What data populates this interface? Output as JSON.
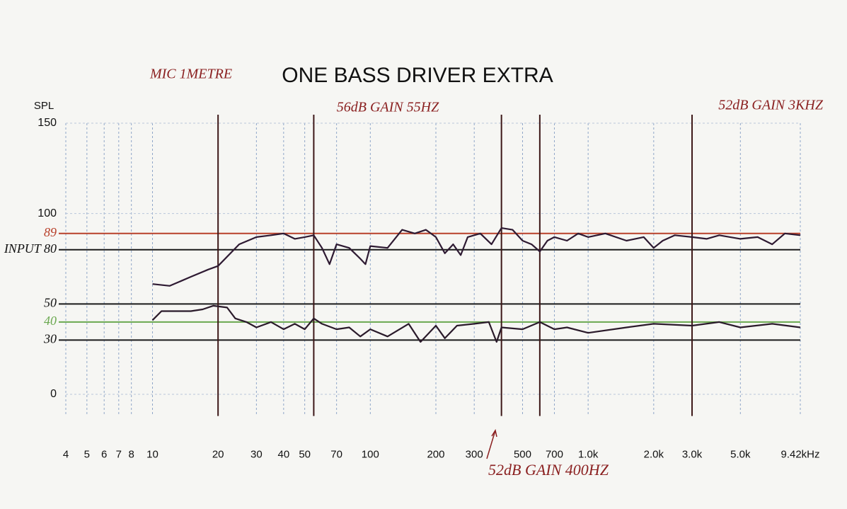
{
  "chart_data": {
    "type": "line",
    "title": "ONE BASS DRIVER EXTRA",
    "note": "MIC 1METRE",
    "ylabel": "SPL",
    "annotations": [
      "56dB GAIN 55HZ",
      "52dB GAIN 3KHZ",
      "52dB GAIN 400HZ"
    ],
    "xscale": "log",
    "xlim": [
      4,
      9420
    ],
    "ylim": [
      -12,
      150
    ],
    "xticks": [
      4,
      5,
      6,
      7,
      8,
      10,
      20,
      30,
      40,
      50,
      70,
      100,
      200,
      300,
      500,
      700,
      {
        "value": 1000,
        "label": "1.0k"
      },
      {
        "value": 2000,
        "label": "2.0k"
      },
      {
        "value": 3000,
        "label": "3.0k"
      },
      {
        "value": 5000,
        "label": "5.0k"
      },
      {
        "value": 9420,
        "label": "9.42kHz"
      }
    ],
    "yticks": [
      0,
      30,
      40,
      50,
      {
        "value": 80,
        "label": "INPUT 80"
      },
      89,
      100,
      150
    ],
    "grid": true,
    "hlines": [
      {
        "value": 89,
        "color": "#b8402a"
      },
      {
        "value": 80,
        "color": "#1a1a1a"
      },
      {
        "value": 50,
        "color": "#1a1a1a"
      },
      {
        "value": 40,
        "color": "#6aa84f"
      },
      {
        "value": 30,
        "color": "#1a1a1a"
      }
    ],
    "vlines": {
      "values": [
        20,
        55,
        400,
        600,
        3000
      ],
      "color": "#3d1818"
    },
    "series": [
      {
        "color": "#2e1a32",
        "x": [
          10,
          12,
          15,
          18,
          20,
          25,
          30,
          35,
          40,
          45,
          50,
          55,
          60,
          65,
          70,
          80,
          90,
          95,
          100,
          120,
          140,
          160,
          180,
          200,
          220,
          240,
          260,
          280,
          320,
          360,
          400,
          450,
          500,
          550,
          600,
          650,
          700,
          800,
          900,
          1000,
          1200,
          1500,
          1800,
          2000,
          2200,
          2500,
          3000,
          3500,
          4000,
          5000,
          6000,
          7000,
          8000,
          9420
        ],
        "values": [
          61,
          60,
          65,
          69,
          71,
          83,
          87,
          88,
          89,
          86,
          87,
          88,
          81,
          72,
          83,
          81,
          75,
          72,
          82,
          81,
          91,
          89,
          91,
          87,
          78,
          83,
          77,
          87,
          89,
          83,
          92,
          91,
          85,
          83,
          79,
          85,
          87,
          85,
          89,
          87,
          89,
          85,
          87,
          81,
          85,
          88,
          87,
          86,
          88,
          86,
          87,
          83,
          89,
          88
        ]
      },
      {
        "color": "#2a1a2a",
        "x": [
          10,
          11,
          15,
          17,
          19,
          22,
          24,
          27,
          30,
          35,
          40,
          45,
          50,
          55,
          60,
          70,
          80,
          90,
          100,
          120,
          150,
          170,
          200,
          220,
          250,
          300,
          350,
          380,
          400,
          500,
          600,
          700,
          800,
          1000,
          1500,
          2000,
          3000,
          4000,
          5000,
          7000,
          9420
        ],
        "values": [
          41,
          46,
          46,
          47,
          49,
          48,
          42,
          40,
          37,
          40,
          36,
          39,
          36,
          42,
          39,
          36,
          37,
          32,
          36,
          32,
          39,
          29,
          38,
          31,
          38,
          39,
          40,
          29,
          37,
          36,
          40,
          36,
          37,
          34,
          37,
          39,
          38,
          40,
          37,
          39,
          37
        ]
      }
    ]
  }
}
